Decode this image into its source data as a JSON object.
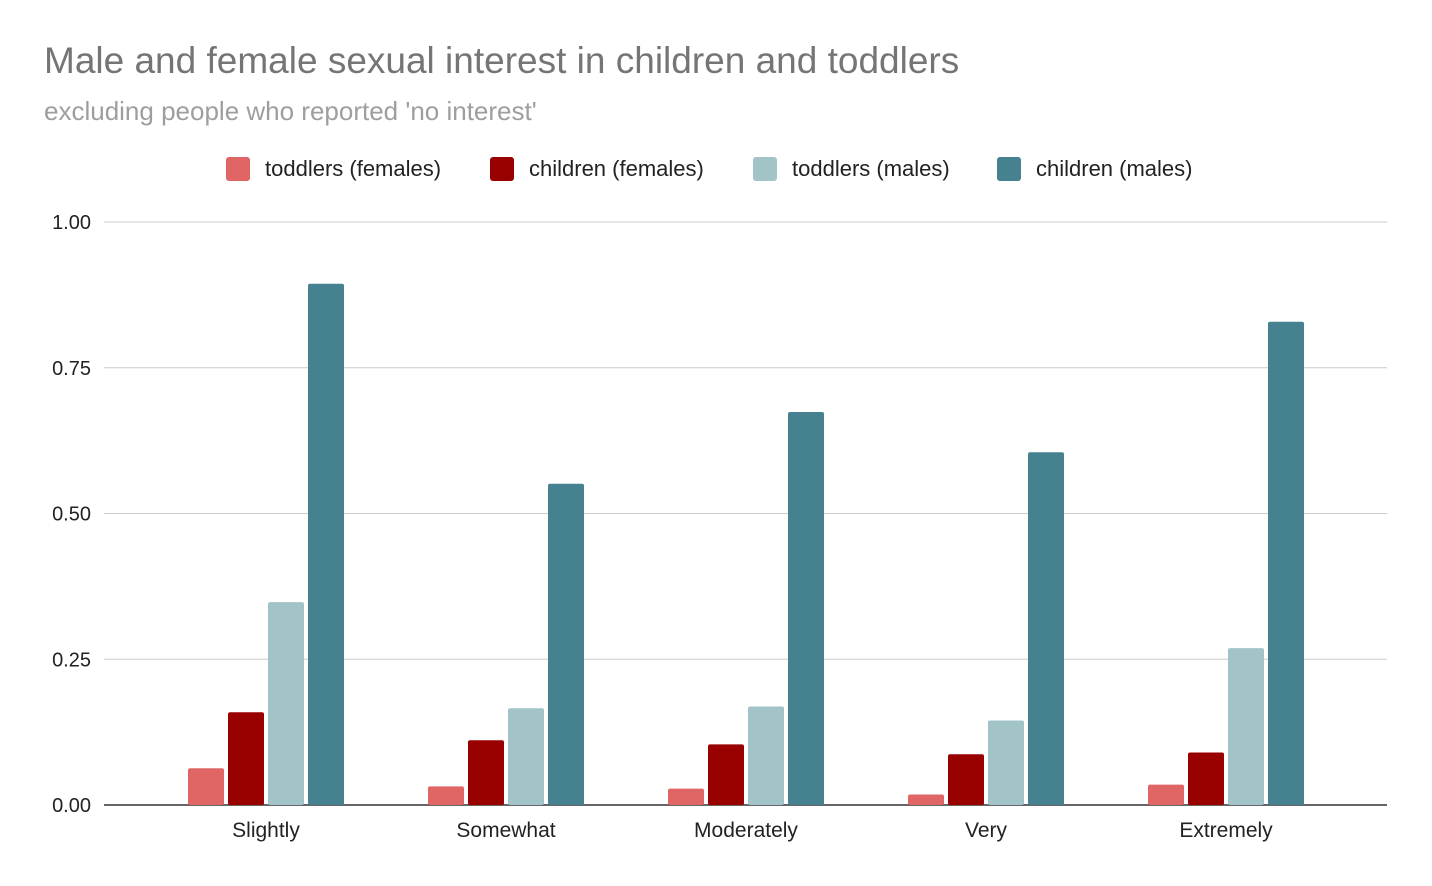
{
  "chart_data": {
    "type": "bar",
    "title": "Male and female sexual interest in children and toddlers",
    "subtitle": "excluding people who reported 'no interest'",
    "xlabel": "",
    "ylabel": "",
    "categories": [
      "Slightly",
      "Somewhat",
      "Moderately",
      "Very",
      "Extremely"
    ],
    "series": [
      {
        "name": "toddlers (females)",
        "color": "#e06666",
        "values": [
          0.063,
          0.032,
          0.028,
          0.018,
          0.035
        ]
      },
      {
        "name": "children (females)",
        "color": "#990000",
        "values": [
          0.159,
          0.111,
          0.104,
          0.087,
          0.09
        ]
      },
      {
        "name": "toddlers (males)",
        "color": "#a2c4c9",
        "values": [
          0.348,
          0.166,
          0.169,
          0.145,
          0.269
        ]
      },
      {
        "name": "children (males)",
        "color": "#45818e",
        "values": [
          0.894,
          0.551,
          0.674,
          0.605,
          0.829
        ]
      }
    ],
    "yticks": [
      "0.00",
      "0.25",
      "0.50",
      "0.75",
      "1.00"
    ],
    "ylim": [
      0,
      1
    ],
    "grid": true,
    "legend_position": "top-center"
  }
}
